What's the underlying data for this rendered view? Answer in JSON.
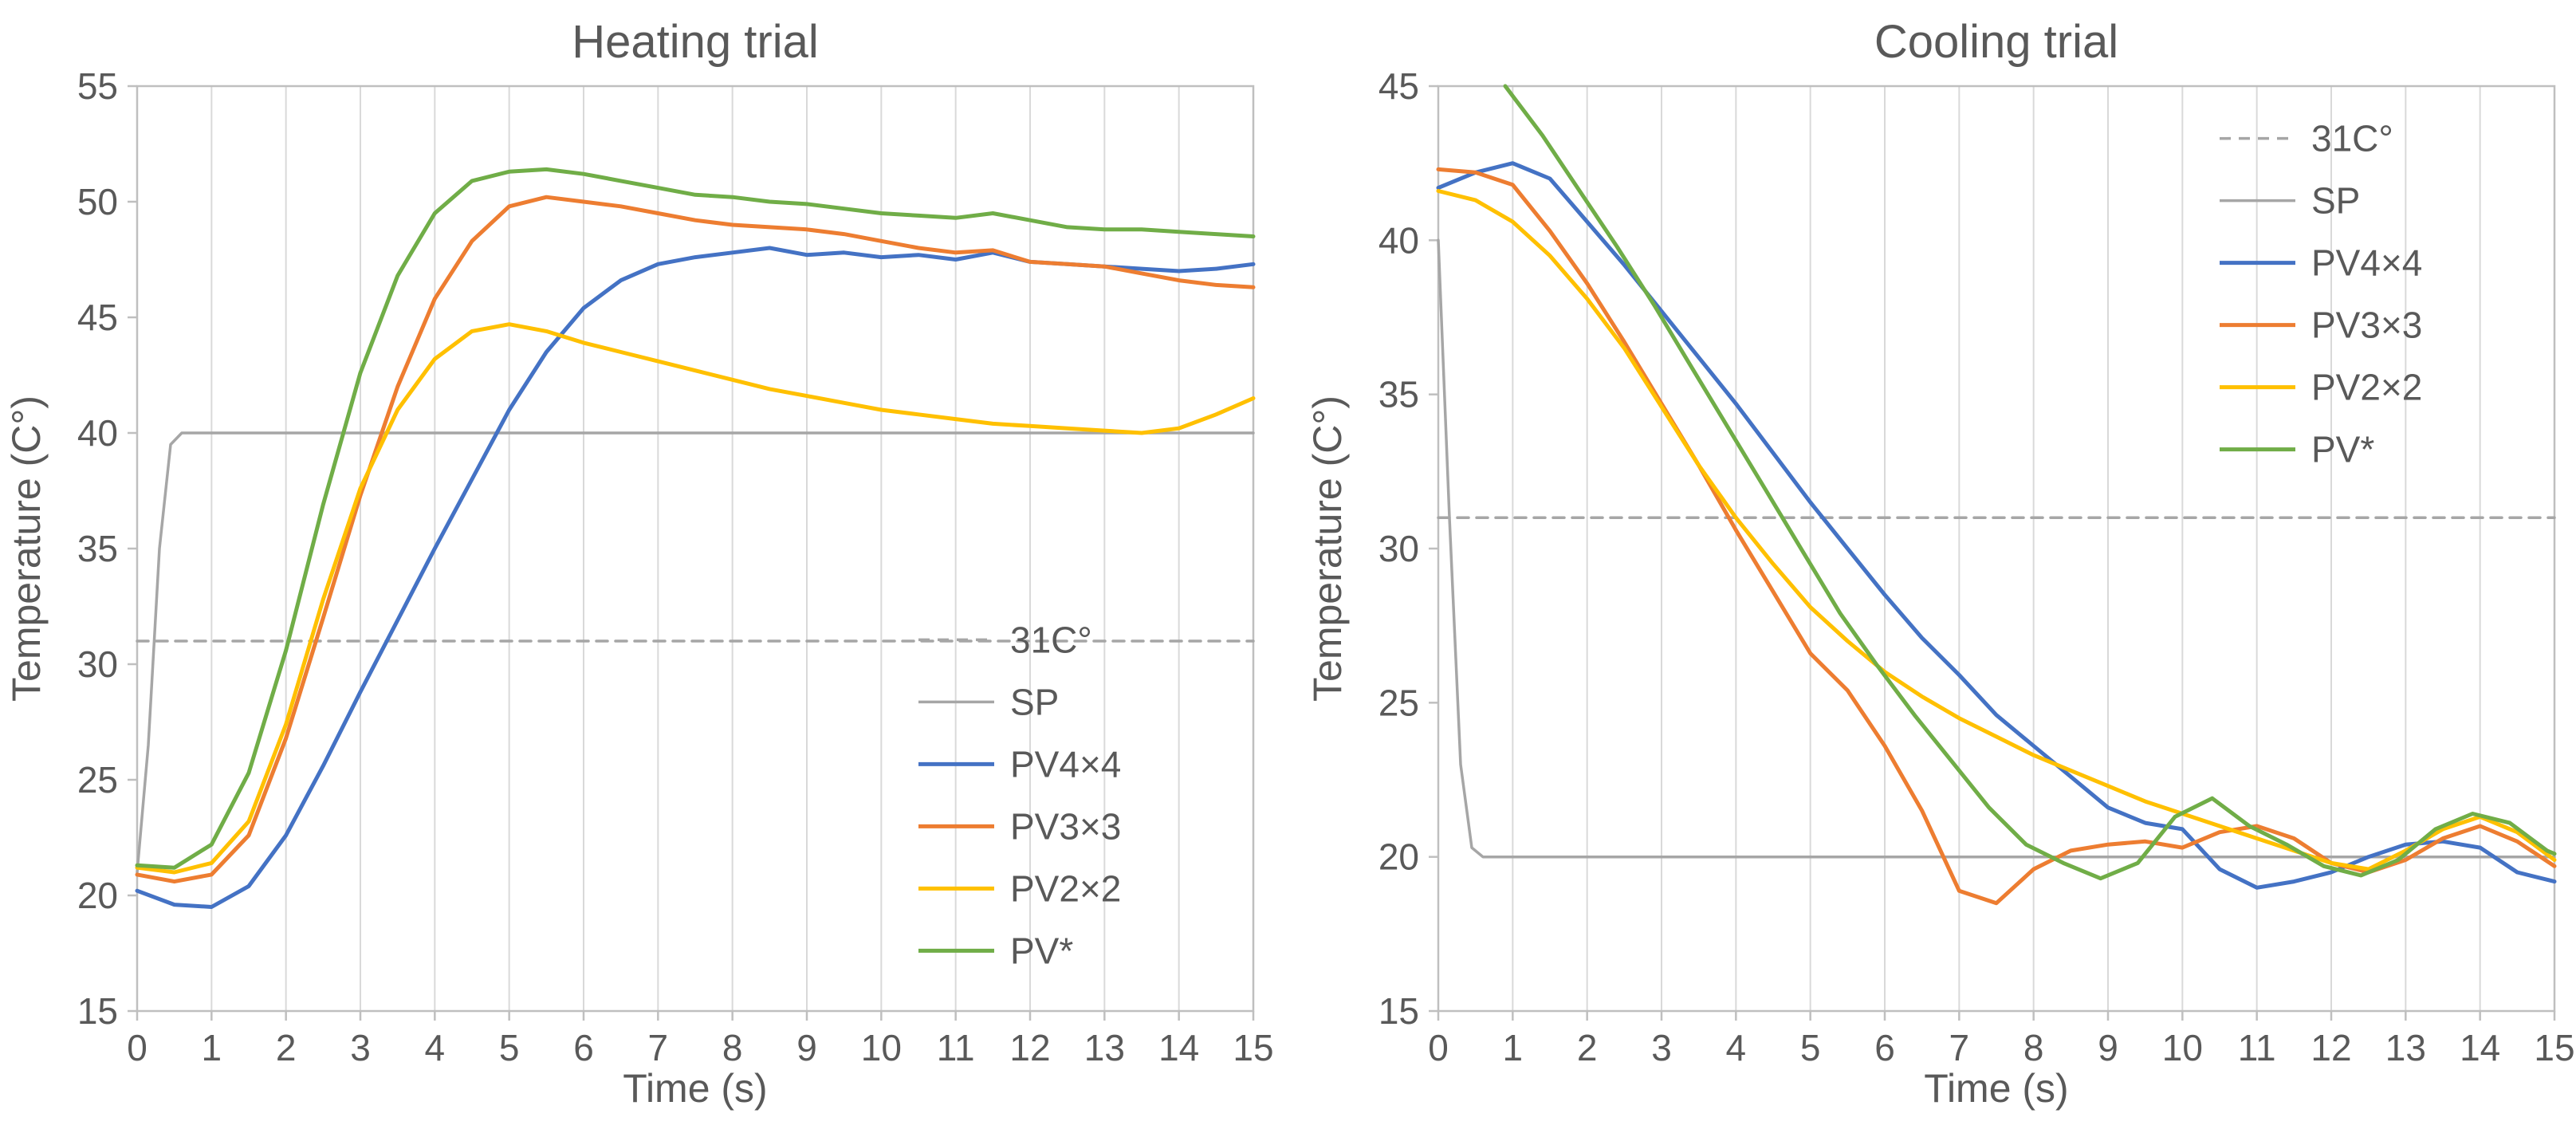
{
  "page": {
    "background": "#ffffff",
    "text_color": "#595959",
    "grid_color": "#d9d9d9",
    "border_color": "#bfbfbf"
  },
  "chart_data": [
    {
      "name": "heating-trial",
      "type": "line",
      "title": "Heating trial",
      "xlabel": "Time (s)",
      "ylabel": "Temperature (C°)",
      "xlim": [
        0,
        15
      ],
      "ylim": [
        15,
        55
      ],
      "xticks": [
        0,
        1,
        2,
        3,
        4,
        5,
        6,
        7,
        8,
        9,
        10,
        11,
        12,
        13,
        14,
        15
      ],
      "yticks": [
        15,
        20,
        25,
        30,
        35,
        40,
        45,
        50,
        55
      ],
      "grid": "vertical",
      "legend": {
        "position": "inside-right-middle",
        "fx": 0.7,
        "fy": 0.565
      },
      "series": [
        {
          "name": "31C°",
          "color": "#a6a6a6",
          "dash": true,
          "width": 3.5,
          "points": [
            [
              0,
              31
            ],
            [
              15,
              31
            ]
          ]
        },
        {
          "name": "SP",
          "color": "#a6a6a6",
          "dash": false,
          "width": 3.5,
          "points": [
            [
              0,
              21
            ],
            [
              0.15,
              26.5
            ],
            [
              0.3,
              35
            ],
            [
              0.45,
              39.5
            ],
            [
              0.6,
              40
            ],
            [
              15,
              40
            ]
          ]
        },
        {
          "name": "PV4×4",
          "color": "#4472c4",
          "dash": false,
          "width": 5,
          "x0": 0,
          "dx": 0.5,
          "y": [
            20.2,
            19.6,
            19.5,
            20.4,
            22.6,
            25.6,
            28.8,
            31.9,
            35.0,
            38.0,
            41.0,
            43.5,
            45.4,
            46.6,
            47.3,
            47.6,
            47.8,
            48.0,
            47.7,
            47.8,
            47.6,
            47.7,
            47.5,
            47.8,
            47.4,
            47.3,
            47.2,
            47.1,
            47.0,
            47.1,
            47.3
          ]
        },
        {
          "name": "PV3×3",
          "color": "#ed7d31",
          "dash": false,
          "width": 5,
          "x0": 0,
          "dx": 0.5,
          "y": [
            20.9,
            20.6,
            20.9,
            22.6,
            26.8,
            32.0,
            37.3,
            42.0,
            45.8,
            48.3,
            49.8,
            50.2,
            50.0,
            49.8,
            49.5,
            49.2,
            49.0,
            48.9,
            48.8,
            48.6,
            48.3,
            48.0,
            47.8,
            47.9,
            47.4,
            47.3,
            47.2,
            46.9,
            46.6,
            46.4,
            46.3
          ]
        },
        {
          "name": "PV2×2",
          "color": "#ffc000",
          "dash": false,
          "width": 5,
          "x0": 0,
          "dx": 0.5,
          "y": [
            21.2,
            21.0,
            21.4,
            23.2,
            27.4,
            32.8,
            37.6,
            41.0,
            43.2,
            44.4,
            44.7,
            44.4,
            43.9,
            43.5,
            43.1,
            42.7,
            42.3,
            41.9,
            41.6,
            41.3,
            41.0,
            40.8,
            40.6,
            40.4,
            40.3,
            40.2,
            40.1,
            40.0,
            40.2,
            40.8,
            41.5
          ]
        },
        {
          "name": "PV*",
          "color": "#70ad47",
          "dash": false,
          "width": 5,
          "x0": 0,
          "dx": 0.5,
          "y": [
            21.3,
            21.2,
            22.2,
            25.3,
            30.6,
            36.9,
            42.6,
            46.8,
            49.5,
            50.9,
            51.3,
            51.4,
            51.2,
            50.9,
            50.6,
            50.3,
            50.2,
            50.0,
            49.9,
            49.7,
            49.5,
            49.4,
            49.3,
            49.5,
            49.2,
            48.9,
            48.8,
            48.8,
            48.7,
            48.6,
            48.5
          ]
        }
      ]
    },
    {
      "name": "cooling-trial",
      "type": "line",
      "title": "Cooling trial",
      "xlabel": "Time (s)",
      "ylabel": "Temperature (C°)",
      "xlim": [
        0,
        15
      ],
      "ylim": [
        15,
        45
      ],
      "xticks": [
        0,
        1,
        2,
        3,
        4,
        5,
        6,
        7,
        8,
        9,
        10,
        11,
        12,
        13,
        14,
        15
      ],
      "yticks": [
        15,
        20,
        25,
        30,
        35,
        40,
        45
      ],
      "grid": "vertical",
      "legend": {
        "position": "inside-right-top",
        "fx": 0.7,
        "fy": 0.023
      },
      "series": [
        {
          "name": "31C°",
          "color": "#a6a6a6",
          "dash": true,
          "width": 3.5,
          "points": [
            [
              0,
              31
            ],
            [
              15,
              31
            ]
          ]
        },
        {
          "name": "SP",
          "color": "#a6a6a6",
          "dash": false,
          "width": 3.5,
          "points": [
            [
              0,
              40
            ],
            [
              0.15,
              31
            ],
            [
              0.3,
              23
            ],
            [
              0.45,
              20.3
            ],
            [
              0.6,
              20
            ],
            [
              15,
              20
            ]
          ]
        },
        {
          "name": "PV4×4",
          "color": "#4472c4",
          "dash": false,
          "width": 5,
          "x0": 0,
          "dx": 0.5,
          "y": [
            41.7,
            42.2,
            42.5,
            42.0,
            40.6,
            39.2,
            37.7,
            36.2,
            34.7,
            33.1,
            31.5,
            30.0,
            28.5,
            27.1,
            25.9,
            24.6,
            23.6,
            22.6,
            21.6,
            21.1,
            20.9,
            19.6,
            19.0,
            19.2,
            19.5,
            20.0,
            20.4,
            20.5,
            20.3,
            19.5,
            19.2
          ]
        },
        {
          "name": "PV3×3",
          "color": "#ed7d31",
          "dash": false,
          "width": 5,
          "x0": 0,
          "dx": 0.5,
          "y": [
            42.3,
            42.2,
            41.8,
            40.3,
            38.6,
            36.7,
            34.7,
            32.7,
            30.6,
            28.6,
            26.6,
            25.4,
            23.6,
            21.5,
            18.9,
            18.5,
            19.6,
            20.2,
            20.4,
            20.5,
            20.3,
            20.8,
            21.0,
            20.6,
            19.8,
            19.5,
            19.9,
            20.6,
            21.0,
            20.5,
            19.7
          ]
        },
        {
          "name": "PV2×2",
          "color": "#ffc000",
          "dash": false,
          "width": 5,
          "x0": 0,
          "dx": 0.5,
          "y": [
            41.6,
            41.3,
            40.6,
            39.5,
            38.1,
            36.5,
            34.6,
            32.7,
            31.0,
            29.5,
            28.1,
            27.0,
            26.0,
            25.2,
            24.5,
            23.9,
            23.3,
            22.8,
            22.3,
            21.8,
            21.4,
            21.0,
            20.6,
            20.2,
            19.8,
            19.6,
            20.2,
            20.9,
            21.3,
            20.8,
            19.9
          ]
        },
        {
          "name": "PV*",
          "color": "#70ad47",
          "dash": false,
          "width": 5,
          "x": [
            0.9,
            1.4,
            1.9,
            2.4,
            2.9,
            3.4,
            3.9,
            4.4,
            4.9,
            5.4,
            5.9,
            6.4,
            6.9,
            7.4,
            7.9,
            8.4,
            8.9,
            9.4,
            9.9,
            10.4,
            10.9,
            11.4,
            11.9,
            12.4,
            12.9,
            13.4,
            13.9,
            14.4,
            14.9,
            15
          ],
          "y": [
            45.0,
            43.4,
            41.6,
            39.8,
            37.9,
            35.9,
            33.9,
            31.9,
            29.9,
            27.9,
            26.2,
            24.6,
            23.1,
            21.6,
            20.4,
            19.8,
            19.3,
            19.8,
            21.3,
            21.9,
            21.0,
            20.4,
            19.7,
            19.4,
            19.9,
            20.9,
            21.4,
            21.1,
            20.2,
            20.1
          ]
        }
      ]
    }
  ]
}
